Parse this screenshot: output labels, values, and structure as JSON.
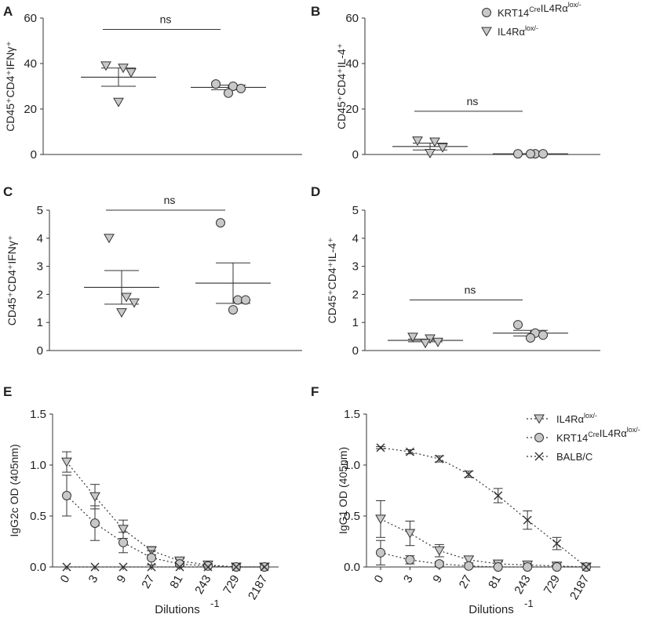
{
  "chart_data": [
    {
      "id": "A",
      "letter": "A",
      "type": "scatter",
      "ylabel": "CD45⁺CD4⁺IFNγ⁺",
      "ylim": [
        0,
        60
      ],
      "yticks": [
        "0",
        "20",
        "40",
        "60"
      ],
      "groups": [
        {
          "marker": "triangle",
          "values": [
            39,
            38,
            36,
            23
          ],
          "mean": 34,
          "sem": 4
        },
        {
          "marker": "circle",
          "values": [
            31,
            30,
            29,
            27
          ],
          "mean": 29.5,
          "sem": 1
        }
      ],
      "significance": "ns",
      "significance_y": 55
    },
    {
      "id": "B",
      "letter": "B",
      "type": "scatter",
      "ylabel": "CD45⁺CD4⁺IL-4⁺",
      "ylim": [
        0,
        60
      ],
      "yticks": [
        "0",
        "20",
        "40",
        "60"
      ],
      "groups": [
        {
          "marker": "triangle",
          "values": [
            6,
            5.5,
            3,
            0.5
          ],
          "mean": 3.5,
          "sem": 1.5
        },
        {
          "marker": "circle",
          "values": [
            0.3,
            0.3,
            0.3,
            0.3
          ],
          "mean": 0.3,
          "sem": 0.05
        }
      ],
      "significance": "ns",
      "significance_y": 19
    },
    {
      "id": "C",
      "letter": "C",
      "type": "scatter",
      "ylabel": "CD45⁺CD4⁺IFNγ⁺",
      "ylim": [
        0,
        5
      ],
      "yticks": [
        "0",
        "1",
        "2",
        "3",
        "4",
        "5"
      ],
      "groups": [
        {
          "marker": "triangle",
          "values": [
            4.0,
            1.9,
            1.7,
            1.35
          ],
          "mean": 2.25,
          "sem": 0.6
        },
        {
          "marker": "circle",
          "values": [
            4.55,
            1.8,
            1.8,
            1.45
          ],
          "mean": 2.4,
          "sem": 0.72
        }
      ],
      "significance": "ns",
      "significance_y": 5
    },
    {
      "id": "D",
      "letter": "D",
      "type": "scatter",
      "ylabel": "CD45⁺CD4⁺IL-4⁺",
      "ylim": [
        0,
        5
      ],
      "yticks": [
        "0",
        "1",
        "2",
        "3",
        "4",
        "5"
      ],
      "groups": [
        {
          "marker": "triangle",
          "values": [
            0.48,
            0.42,
            0.3,
            0.26
          ],
          "mean": 0.36,
          "sem": 0.05
        },
        {
          "marker": "circle",
          "values": [
            0.92,
            0.62,
            0.55,
            0.45
          ],
          "mean": 0.62,
          "sem": 0.1
        }
      ],
      "significance": "ns",
      "significance_y": 1.8
    },
    {
      "id": "E",
      "letter": "E",
      "type": "line",
      "ylabel": "IgG2c OD (405nm)",
      "xlabel": "Dilutions",
      "xlabel_sup": "-1",
      "ylim": [
        0,
        1.5
      ],
      "yticks": [
        "0.0",
        "0.5",
        "1.0",
        "1.5"
      ],
      "categories": [
        "0",
        "3",
        "9",
        "27",
        "81",
        "243",
        "729",
        "2187"
      ],
      "series": [
        {
          "marker": "triangle",
          "values": [
            1.03,
            0.69,
            0.37,
            0.16,
            0.06,
            0.02,
            0.0,
            0.0
          ],
          "errors": [
            0.1,
            0.12,
            0.09,
            0.04,
            0.02,
            0.01,
            0.0,
            0.0
          ]
        },
        {
          "marker": "circle",
          "values": [
            0.7,
            0.43,
            0.24,
            0.09,
            0.03,
            0.01,
            0.0,
            0.0
          ],
          "errors": [
            0.2,
            0.17,
            0.1,
            0.07,
            0.02,
            0.01,
            0.0,
            0.0
          ]
        },
        {
          "marker": "x",
          "values": [
            0.0,
            0.0,
            0.0,
            0.0,
            0.0,
            0.0,
            0.0,
            0.0
          ],
          "errors": [
            0,
            0,
            0,
            0,
            0,
            0,
            0,
            0
          ]
        }
      ]
    },
    {
      "id": "F",
      "letter": "F",
      "type": "line",
      "ylabel": "IgG1 OD (405nm)",
      "xlabel": "Dilutions",
      "xlabel_sup": "-1",
      "ylim": [
        0,
        1.5
      ],
      "yticks": [
        "0.0",
        "0.5",
        "1.0",
        "1.5"
      ],
      "categories": [
        "0",
        "3",
        "9",
        "27",
        "81",
        "243",
        "729",
        "2187"
      ],
      "series": [
        {
          "marker": "triangle",
          "values": [
            0.47,
            0.33,
            0.16,
            0.07,
            0.03,
            0.02,
            0.01,
            0.0
          ],
          "errors": [
            0.18,
            0.12,
            0.06,
            0.03,
            0.02,
            0.01,
            0.01,
            0.0
          ]
        },
        {
          "marker": "circle",
          "values": [
            0.14,
            0.07,
            0.03,
            0.01,
            0.0,
            0.0,
            0.0,
            0.0
          ],
          "errors": [
            0.12,
            0.04,
            0.02,
            0.01,
            0.0,
            0.0,
            0.0,
            0.0
          ]
        },
        {
          "marker": "x",
          "values": [
            1.17,
            1.13,
            1.06,
            0.91,
            0.7,
            0.46,
            0.23,
            0.0
          ],
          "errors": [
            0.01,
            0.02,
            0.03,
            0.03,
            0.07,
            0.09,
            0.06,
            0.0
          ]
        }
      ]
    }
  ],
  "legend_top": [
    {
      "marker": "circle",
      "base": "KRT14",
      "sup1": "Cre",
      "mid": "IL4Rα",
      "sup2": "lox/-"
    },
    {
      "marker": "triangle",
      "base": "",
      "sup1": "",
      "mid": "IL4Rα",
      "sup2": "lox/-"
    }
  ],
  "legend_bottom": [
    {
      "marker": "triangle",
      "base": "",
      "sup1": "",
      "mid": "IL4Rα",
      "sup2": "lox/-"
    },
    {
      "marker": "circle",
      "base": "KRT14",
      "sup1": "Cre",
      "mid": "IL4Rα",
      "sup2": "lox/-"
    },
    {
      "marker": "x",
      "base": "BALB/C",
      "sup1": "",
      "mid": "",
      "sup2": ""
    }
  ],
  "colors": {
    "marker_fill": "#c8c8c8",
    "stroke": "#333333",
    "text": "#222222"
  }
}
